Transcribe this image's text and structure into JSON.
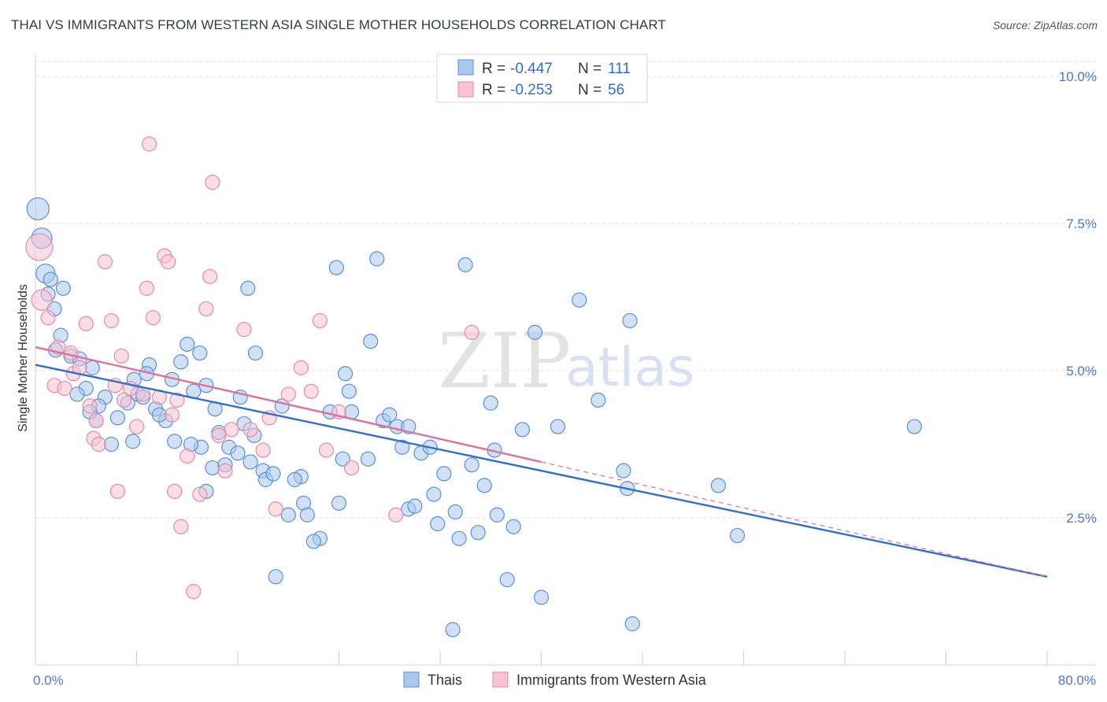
{
  "chart_data": {
    "type": "scatter",
    "title": "THAI VS IMMIGRANTS FROM WESTERN ASIA SINGLE MOTHER HOUSEHOLDS CORRELATION CHART",
    "source": "Source: ZipAtlas.com",
    "ylabel": "Single Mother Households",
    "xlim": [
      0,
      80
    ],
    "ylim": [
      0,
      10
    ],
    "y_ticks": [
      2.5,
      5.0,
      7.5,
      10.0
    ],
    "y_tick_labels": [
      "2.5%",
      "5.0%",
      "7.5%",
      "10.0%"
    ],
    "x_tick_labels": {
      "left": "0.0%",
      "right": "80.0%"
    },
    "grid": true,
    "watermark": {
      "zip": "ZIP",
      "atlas": "atlas"
    },
    "legend_stats": [
      {
        "r_label": "R = ",
        "r_value": "-0.447",
        "n_label": "N = ",
        "n_value": "111"
      },
      {
        "r_label": "R = ",
        "r_value": "-0.253",
        "n_label": "N = ",
        "n_value": "56"
      }
    ],
    "series": [
      {
        "name": "Thais",
        "color": "#5b8fd6",
        "fill": "#aac8ef",
        "trend": {
          "x0": 0,
          "y0": 5.1,
          "x1": 80,
          "y1": 1.5,
          "color": "#2f6fd0"
        },
        "points": [
          [
            0.2,
            7.75
          ],
          [
            0.5,
            7.25
          ],
          [
            0.8,
            6.65
          ],
          [
            1.2,
            6.55
          ],
          [
            1.0,
            6.3
          ],
          [
            1.5,
            6.05
          ],
          [
            2.2,
            6.4
          ],
          [
            2.0,
            5.6
          ],
          [
            2.8,
            5.25
          ],
          [
            3.5,
            5.2
          ],
          [
            4.0,
            4.7
          ],
          [
            3.3,
            4.6
          ],
          [
            4.5,
            5.05
          ],
          [
            5.5,
            4.55
          ],
          [
            5.0,
            4.4
          ],
          [
            4.8,
            4.15
          ],
          [
            4.3,
            4.3
          ],
          [
            6.5,
            4.2
          ],
          [
            7.3,
            4.45
          ],
          [
            7.8,
            4.85
          ],
          [
            8.1,
            4.6
          ],
          [
            9.0,
            5.1
          ],
          [
            8.8,
            4.95
          ],
          [
            9.5,
            4.35
          ],
          [
            10.3,
            4.15
          ],
          [
            9.8,
            4.25
          ],
          [
            11.5,
            5.15
          ],
          [
            12.0,
            5.45
          ],
          [
            13.0,
            5.3
          ],
          [
            13.5,
            4.75
          ],
          [
            14.2,
            4.35
          ],
          [
            14.5,
            3.95
          ],
          [
            15.3,
            3.7
          ],
          [
            13.1,
            3.7
          ],
          [
            14.0,
            3.35
          ],
          [
            12.3,
            3.75
          ],
          [
            11.0,
            3.8
          ],
          [
            13.5,
            2.95
          ],
          [
            16.2,
            4.55
          ],
          [
            16.5,
            4.1
          ],
          [
            17.3,
            3.9
          ],
          [
            17.0,
            3.45
          ],
          [
            16.0,
            3.6
          ],
          [
            18.0,
            3.3
          ],
          [
            18.2,
            3.15
          ],
          [
            16.8,
            6.4
          ],
          [
            17.4,
            5.3
          ],
          [
            19.5,
            4.4
          ],
          [
            21.0,
            3.2
          ],
          [
            21.2,
            2.75
          ],
          [
            21.5,
            2.55
          ],
          [
            22.5,
            2.15
          ],
          [
            22.0,
            2.1
          ],
          [
            23.3,
            4.3
          ],
          [
            24.5,
            4.95
          ],
          [
            24.8,
            4.65
          ],
          [
            23.8,
            6.75
          ],
          [
            24.0,
            2.75
          ],
          [
            24.3,
            3.5
          ],
          [
            26.5,
            5.5
          ],
          [
            27.0,
            6.9
          ],
          [
            27.5,
            4.15
          ],
          [
            28.0,
            4.25
          ],
          [
            28.6,
            4.05
          ],
          [
            29.5,
            4.05
          ],
          [
            29.0,
            3.7
          ],
          [
            29.5,
            2.65
          ],
          [
            30.0,
            2.7
          ],
          [
            31.5,
            2.9
          ],
          [
            31.8,
            2.4
          ],
          [
            32.3,
            3.25
          ],
          [
            33.0,
            0.6
          ],
          [
            33.2,
            2.6
          ],
          [
            33.5,
            2.15
          ],
          [
            34.5,
            3.4
          ],
          [
            34.0,
            6.8
          ],
          [
            35.0,
            2.25
          ],
          [
            36.3,
            3.65
          ],
          [
            36.0,
            4.45
          ],
          [
            36.5,
            2.55
          ],
          [
            37.8,
            2.35
          ],
          [
            37.3,
            1.45
          ],
          [
            38.5,
            4.0
          ],
          [
            39.5,
            5.65
          ],
          [
            40.0,
            1.15
          ],
          [
            41.3,
            4.05
          ],
          [
            43.0,
            6.2
          ],
          [
            44.5,
            4.5
          ],
          [
            47.0,
            5.85
          ],
          [
            47.2,
            0.7
          ],
          [
            46.5,
            3.3
          ],
          [
            46.8,
            3.0
          ],
          [
            54.0,
            3.05
          ],
          [
            55.5,
            2.2
          ],
          [
            69.5,
            4.05
          ],
          [
            1.6,
            5.35
          ],
          [
            6.0,
            3.75
          ],
          [
            7.7,
            3.8
          ],
          [
            15.0,
            3.4
          ],
          [
            18.8,
            3.25
          ],
          [
            20.0,
            2.55
          ],
          [
            25.0,
            4.3
          ],
          [
            26.3,
            3.5
          ],
          [
            30.5,
            3.6
          ],
          [
            31.2,
            3.7
          ],
          [
            35.5,
            3.05
          ],
          [
            19.0,
            1.5
          ],
          [
            20.5,
            3.15
          ],
          [
            12.5,
            4.65
          ],
          [
            10.8,
            4.85
          ],
          [
            8.5,
            4.55
          ]
        ]
      },
      {
        "name": "Immigrants from Western Asia",
        "color": "#e88aa6",
        "fill": "#f6c3d2",
        "trend": {
          "x0": 0,
          "y0": 5.4,
          "x1": 40,
          "y1": 3.45,
          "color": "#e0709a"
        },
        "extension": {
          "x0": 40,
          "y0": 3.45,
          "x1": 80,
          "y1": 1.5
        },
        "points": [
          [
            0.3,
            7.1
          ],
          [
            0.5,
            6.2
          ],
          [
            1.0,
            5.9
          ],
          [
            1.5,
            4.75
          ],
          [
            1.8,
            5.4
          ],
          [
            2.3,
            4.7
          ],
          [
            2.8,
            5.3
          ],
          [
            3.0,
            4.95
          ],
          [
            3.5,
            5.05
          ],
          [
            4.0,
            5.8
          ],
          [
            4.3,
            4.4
          ],
          [
            4.6,
            3.85
          ],
          [
            4.8,
            4.15
          ],
          [
            5.0,
            3.75
          ],
          [
            5.5,
            6.85
          ],
          [
            6.0,
            5.85
          ],
          [
            6.3,
            4.75
          ],
          [
            6.8,
            5.25
          ],
          [
            7.0,
            4.5
          ],
          [
            7.5,
            4.7
          ],
          [
            8.0,
            4.05
          ],
          [
            8.5,
            4.6
          ],
          [
            8.8,
            6.4
          ],
          [
            9.0,
            8.85
          ],
          [
            9.3,
            5.9
          ],
          [
            9.8,
            4.55
          ],
          [
            10.2,
            6.95
          ],
          [
            10.5,
            6.85
          ],
          [
            10.8,
            4.25
          ],
          [
            11.2,
            4.5
          ],
          [
            11.5,
            2.35
          ],
          [
            12.0,
            3.55
          ],
          [
            12.5,
            1.25
          ],
          [
            13.0,
            2.9
          ],
          [
            13.5,
            6.05
          ],
          [
            13.8,
            6.6
          ],
          [
            14.0,
            8.2
          ],
          [
            14.5,
            3.9
          ],
          [
            15.0,
            3.3
          ],
          [
            15.5,
            4.0
          ],
          [
            16.5,
            5.7
          ],
          [
            17.0,
            4.0
          ],
          [
            18.0,
            3.65
          ],
          [
            18.5,
            4.2
          ],
          [
            19.0,
            2.65
          ],
          [
            20.0,
            4.6
          ],
          [
            21.0,
            5.05
          ],
          [
            21.8,
            4.65
          ],
          [
            22.5,
            5.85
          ],
          [
            23.0,
            3.65
          ],
          [
            24.0,
            4.3
          ],
          [
            25.0,
            3.35
          ],
          [
            28.5,
            2.55
          ],
          [
            34.5,
            5.65
          ],
          [
            6.5,
            2.95
          ],
          [
            11.0,
            2.95
          ]
        ]
      }
    ],
    "legend_bottom": [
      "Thais",
      "Immigrants from Western Asia"
    ]
  }
}
